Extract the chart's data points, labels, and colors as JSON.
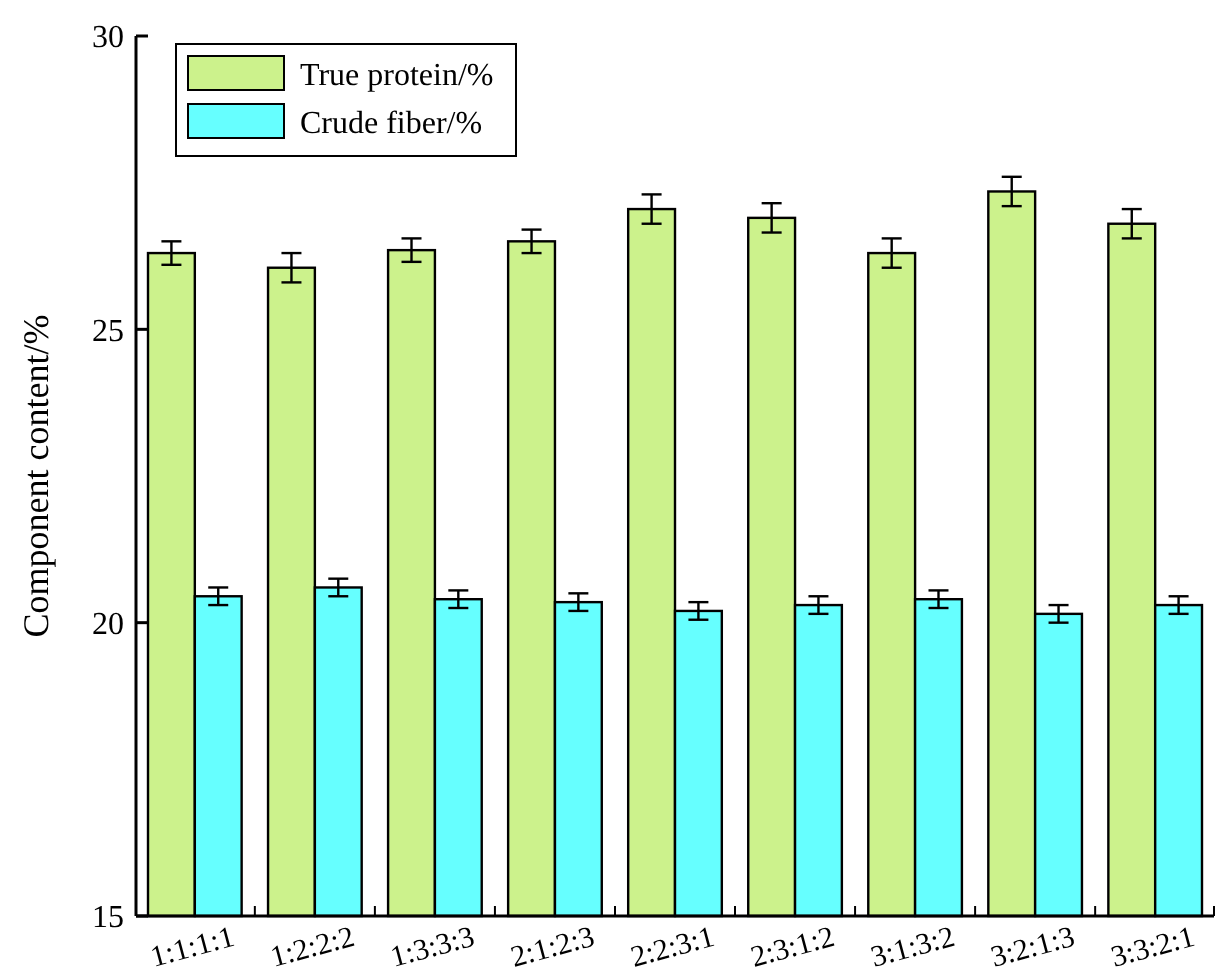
{
  "chart_data": {
    "type": "bar",
    "ylabel": "Component content/%",
    "categories": [
      "1:1:1:1",
      "1:2:2:2",
      "1:3:3:3",
      "2:1:2:3",
      "2:2:3:1",
      "2:3:1:2",
      "3:1:3:2",
      "3:2:1:3",
      "3:3:2:1"
    ],
    "series": [
      {
        "name": "True protein/%",
        "color": "#ccf28c",
        "values": [
          26.3,
          26.05,
          26.35,
          26.5,
          27.05,
          26.9,
          26.3,
          27.35,
          26.8
        ],
        "errors": [
          0.2,
          0.25,
          0.2,
          0.2,
          0.25,
          0.25,
          0.25,
          0.25,
          0.25
        ]
      },
      {
        "name": "Crude fiber/%",
        "color": "#66ffff",
        "values": [
          20.45,
          20.6,
          20.4,
          20.35,
          20.2,
          20.3,
          20.4,
          20.15,
          20.3
        ],
        "errors": [
          0.15,
          0.15,
          0.15,
          0.15,
          0.15,
          0.15,
          0.15,
          0.15,
          0.15
        ]
      }
    ],
    "ylim": [
      15,
      30
    ],
    "yticks": [
      15,
      20,
      25,
      30
    ],
    "legend": "top left",
    "grid": false
  }
}
